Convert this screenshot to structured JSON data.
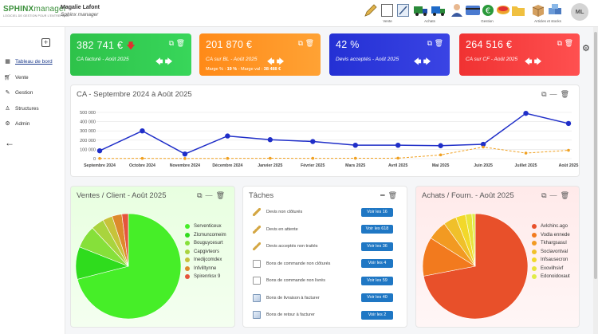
{
  "app": {
    "brand_part1": "SPHINX",
    "brand_part2": "manager",
    "tagline": "LOGICIEL DE GESTION POUR L'ENTREPRISE",
    "user_name": "Magalie Lafont",
    "user_role": "Sphinx manager",
    "avatar_initials": "ML"
  },
  "toolbar": {
    "groups": [
      {
        "label": "Vente",
        "icons": [
          "pencil-icon",
          "blank-doc-icon",
          "edit-doc-icon"
        ]
      },
      {
        "label": "Achats",
        "icons": [
          "truck-icon",
          "delivery-truck-icon"
        ]
      },
      {
        "label": "Gestion",
        "icons": [
          "user-icon",
          "bank-card-icon",
          "euro-icon",
          "coins-icon",
          "folder-icon"
        ]
      },
      {
        "label": "Articles et stocks",
        "icons": [
          "box-icon",
          "boxes-icon"
        ]
      }
    ]
  },
  "sidebar": {
    "items": [
      {
        "label": "Tableau de bord",
        "icon": "dashboard-icon",
        "active": true
      },
      {
        "label": "Vente",
        "icon": "cart-icon",
        "active": false
      },
      {
        "label": "Gestion",
        "icon": "pencil-icon",
        "active": false
      },
      {
        "label": "Structures",
        "icon": "user-icon",
        "active": false
      },
      {
        "label": "Admin",
        "icon": "gears-icon",
        "active": false
      }
    ]
  },
  "kpis": [
    {
      "value": "382 741 €",
      "label": "CA facturé - Août 2025",
      "color": "#2dbb4d",
      "trend": "down"
    },
    {
      "value": "201 870 €",
      "label": "CA sur BL - Août 2025",
      "color": "#ff8c1a",
      "margin_label": "Marge % :",
      "margin_pct": "19 %",
      "margin_val_label": "- Marge val :",
      "margin_val": "38 488 €"
    },
    {
      "value": "42 %",
      "label": "Devis acceptés - Août 2025",
      "color": "#2a35d8"
    },
    {
      "value": "264 516 €",
      "label": "CA sur CF - Août 2025",
      "color": "#f03a3a"
    }
  ],
  "ca_chart": {
    "title": "CA - Septembre 2024 à Août 2025"
  },
  "chart_data": [
    {
      "type": "line",
      "title": "CA - Septembre 2024 à Août 2025",
      "categories": [
        "Septembre 2024",
        "Octobre 2024",
        "Novembre 2024",
        "Décembre 2024",
        "Janvier 2025",
        "Février 2025",
        "Mars 2025",
        "Avril 2025",
        "Mai 2025",
        "Juin 2025",
        "Juillet 2025",
        "Août 2025"
      ],
      "ylim": [
        0,
        500000
      ],
      "yticks": [
        "0",
        "100 000",
        "200 000",
        "300 000",
        "400 000",
        "500 000"
      ],
      "grid": true,
      "series": [
        {
          "color": "#1f2ec8",
          "style": "solid",
          "values": [
            85000,
            300000,
            50000,
            245000,
            205000,
            185000,
            145000,
            145000,
            140000,
            155000,
            490000,
            380000
          ]
        },
        {
          "color": "#f0a020",
          "style": "dashed",
          "values": [
            2000,
            3000,
            1500,
            2500,
            4000,
            3500,
            4000,
            5000,
            40000,
            125000,
            60000,
            90000
          ]
        }
      ]
    },
    {
      "type": "pie",
      "title": "Ventes / Client - Août 2025",
      "labels": [
        "Serventiceux",
        "Zlcmuncomeim",
        "Bouguycesurt",
        "Capgivteors",
        "Inedijcomdex",
        "Infvilltynne",
        "Spirenrksx 9"
      ],
      "values": [
        71,
        10,
        7,
        4,
        3,
        3,
        2
      ],
      "colors": [
        "#46ee28",
        "#2fdc1d",
        "#86e03a",
        "#a9d43e",
        "#c7c33a",
        "#dd8a2c",
        "#e5553c"
      ]
    },
    {
      "type": "pie",
      "title": "Achats / Fourn. - Août 2025",
      "labels": [
        "Avlchinc.ago",
        "Vodla ennede",
        "Tkhargsasul",
        "Soclavontval",
        "Infsausecron",
        "Exovilhsivf",
        "Edonoidoxaut"
      ],
      "values": [
        72,
        12,
        6,
        4,
        3,
        2,
        1
      ],
      "colors": [
        "#e8502a",
        "#f27a1e",
        "#f29a22",
        "#f0c02a",
        "#f2d82a",
        "#e8e43a",
        "#e0ec48"
      ]
    }
  ],
  "clients_panel": {
    "title": "Ventes / Client - Août 2025"
  },
  "suppliers_panel": {
    "title": "Achats / Fourn. - Août 2025"
  },
  "tasks": {
    "title": "Tâches",
    "items": [
      {
        "label": "Devis non clôturés",
        "button": "Voir les 16",
        "icon": "pencil-icon"
      },
      {
        "label": "Devis en attente",
        "button": "Voir les 618",
        "icon": "pencil-icon"
      },
      {
        "label": "Devis acceptés non traités",
        "button": "Voir les 36",
        "icon": "pencil-icon"
      },
      {
        "label": "Bons de commande non clôturés",
        "button": "Voir les 4",
        "icon": "blank-doc-icon"
      },
      {
        "label": "Bons de commande non livrés",
        "button": "Voir les 59",
        "icon": "blank-doc-icon"
      },
      {
        "label": "Bons de livraison à facturer",
        "button": "Voir les 40",
        "icon": "edit-doc-icon"
      },
      {
        "label": "Bons de retour à facturer",
        "button": "Voir les 2",
        "icon": "edit-doc-icon"
      }
    ]
  }
}
